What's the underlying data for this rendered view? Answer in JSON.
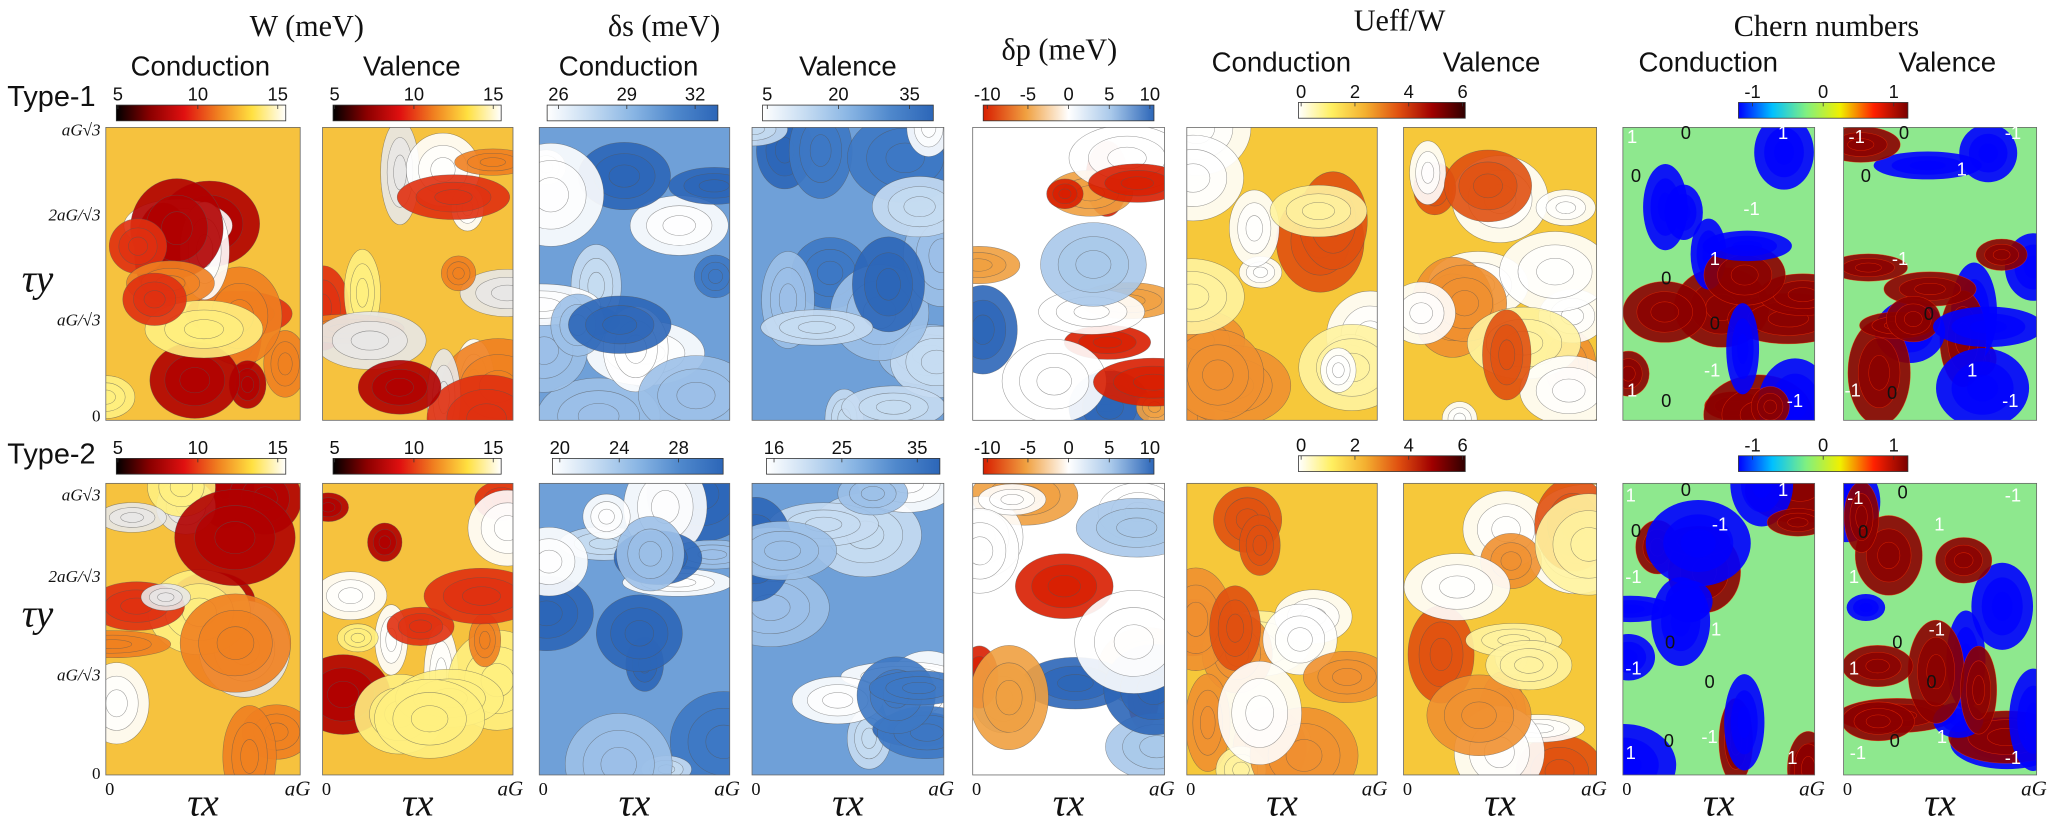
{
  "headers": [
    {
      "title": "W (meV)",
      "subtitles": [
        "Conduction",
        "Valence"
      ]
    },
    {
      "title": "δs (meV)",
      "subtitles": [
        "Conduction",
        "Valence"
      ]
    },
    {
      "title": "δp (meV)",
      "subtitles": []
    },
    {
      "title": "Ueff/W",
      "subtitles": [
        "Conduction",
        "Valence"
      ]
    },
    {
      "title": "Chern numbers",
      "subtitles": [
        "Conduction",
        "Valence"
      ]
    }
  ],
  "rows": [
    {
      "label": "Type-1",
      "colorbars": [
        {
          "ticks": [
            5,
            10,
            15
          ],
          "lim": [
            4.9,
            15.5
          ]
        },
        {
          "ticks": [
            5,
            10,
            15
          ],
          "lim": [
            4.9,
            15.5
          ]
        },
        {
          "ticks": [
            26,
            29,
            32
          ],
          "lim": [
            25.5,
            33
          ]
        },
        {
          "ticks": [
            5,
            20,
            35
          ],
          "lim": [
            4,
            40
          ]
        },
        {
          "ticks": [
            -10,
            -5,
            0,
            5,
            10
          ],
          "lim": [
            -10.5,
            10.5
          ]
        },
        {
          "ticks": [
            0,
            2,
            4,
            6
          ],
          "lim": [
            -0.1,
            6.1
          ]
        },
        {
          "ticks": [
            -1,
            0,
            1
          ],
          "lim": [
            -1.2,
            1.2
          ]
        }
      ]
    },
    {
      "label": "Type-2",
      "colorbars": [
        {
          "ticks": [
            5,
            10,
            15
          ],
          "lim": [
            4.9,
            15.5
          ]
        },
        {
          "ticks": [
            5,
            10,
            15
          ],
          "lim": [
            4.9,
            15.5
          ]
        },
        {
          "ticks": [
            20,
            24,
            28
          ],
          "lim": [
            19.5,
            31
          ]
        },
        {
          "ticks": [
            16,
            25,
            35
          ],
          "lim": [
            15,
            38
          ]
        },
        {
          "ticks": [
            -10,
            -5,
            0,
            5,
            10
          ],
          "lim": [
            -10.5,
            10.5
          ]
        },
        {
          "ticks": [
            0,
            2,
            4,
            6
          ],
          "lim": [
            -0.1,
            6.1
          ]
        },
        {
          "ticks": [
            -1,
            0,
            1
          ],
          "lim": [
            -1.2,
            1.2
          ]
        }
      ]
    }
  ],
  "y_axis": {
    "label": "τy",
    "ticks": [
      "aG√3",
      "2aG/√3",
      "aG/√3",
      "0"
    ]
  },
  "x_axis": {
    "label": "τx",
    "ticks": [
      "0",
      "aG"
    ]
  },
  "chern_labels": [
    [
      "1",
      "0",
      "1",
      "0",
      "-1",
      "1",
      "0",
      "0",
      "-1",
      "1",
      "0",
      "-1"
    ],
    [
      "-1",
      "0",
      "-1",
      "0",
      "1",
      "-1",
      "0",
      "1",
      "-1",
      "0",
      "-1"
    ],
    [
      "1",
      "0",
      "1",
      "0",
      "-1",
      "-1",
      "1",
      "0",
      "-1",
      "0",
      "-1",
      "1",
      "0",
      "1"
    ],
    [
      "-1",
      "0",
      "-1",
      "0",
      "1",
      "1",
      "-1",
      "0",
      "1",
      "0",
      "1",
      "-1",
      "0",
      "-1"
    ]
  ]
}
